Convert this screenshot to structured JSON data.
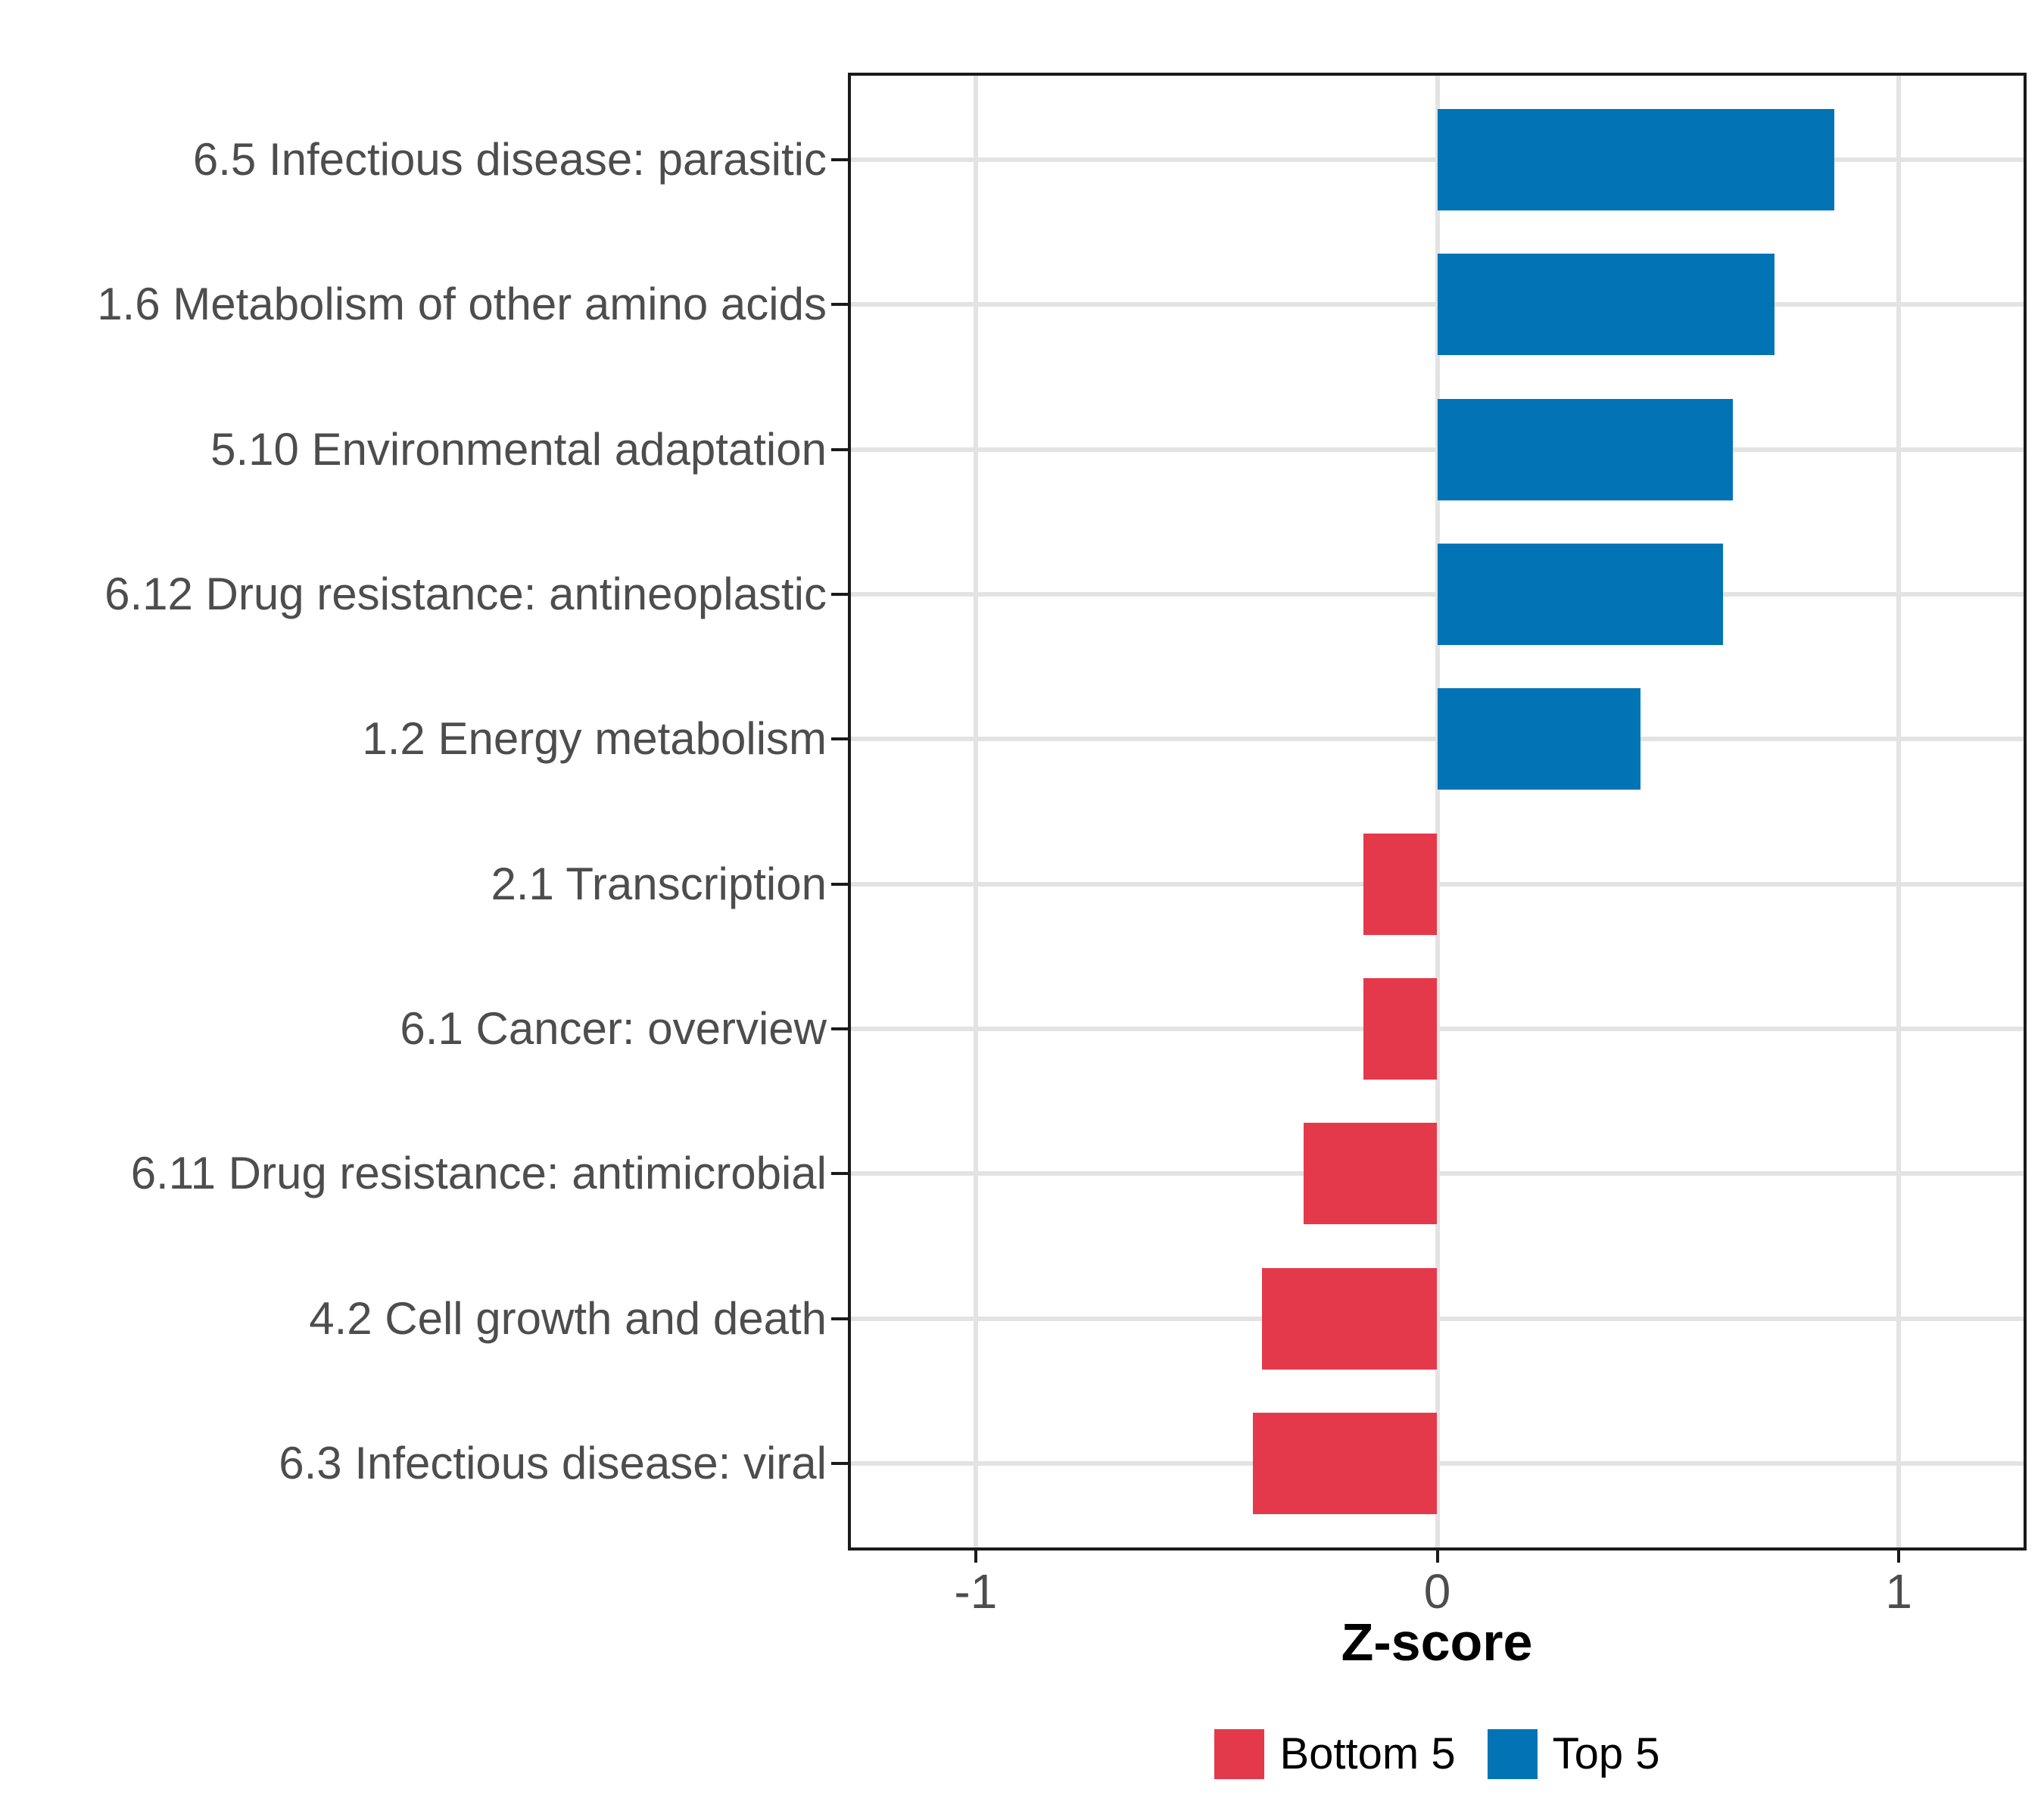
{
  "chart_data": {
    "type": "bar",
    "orientation": "horizontal",
    "title": "",
    "xlabel": "Z-score",
    "ylabel": "",
    "xlim": [
      -1.277,
      1.277
    ],
    "x_ticks": [
      -1,
      0,
      1
    ],
    "x_tick_labels": [
      "-1",
      "0",
      "1"
    ],
    "grid": "major-only",
    "legend_position": "bottom",
    "categories": [
      "6.5 Infectious disease: parasitic",
      "1.6 Metabolism of other amino acids",
      "5.10 Environmental adaptation",
      "6.12 Drug resistance: antineoplastic",
      "1.2 Energy metabolism",
      "2.1 Transcription",
      "6.1 Cancer: overview",
      "6.11 Drug resistance: antimicrobial",
      "4.2 Cell growth and death",
      "6.3 Infectious disease: viral"
    ],
    "values": [
      0.86,
      0.73,
      0.64,
      0.62,
      0.44,
      -0.16,
      -0.16,
      -0.29,
      -0.38,
      -0.4
    ],
    "groups": [
      "Top 5",
      "Top 5",
      "Top 5",
      "Top 5",
      "Top 5",
      "Bottom 5",
      "Bottom 5",
      "Bottom 5",
      "Bottom 5",
      "Bottom 5"
    ],
    "legend": [
      {
        "label": "Bottom 5",
        "group": "Bottom 5"
      },
      {
        "label": "Top 5",
        "group": "Top 5"
      }
    ]
  },
  "colors": {
    "top5_bar": "#0274B5",
    "bottom5_bar": "#E4394A",
    "grid": "#E3E3E3",
    "axis_text": "#4D4D4D",
    "panel_border": "#1A1A1A"
  }
}
